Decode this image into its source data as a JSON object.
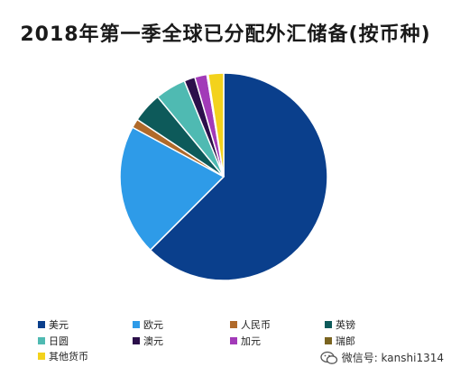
{
  "title": "2018年第一季全球已分配外汇储备(按币种)",
  "watermark": "微信号: kanshi1314",
  "chart_data": {
    "type": "pie",
    "title": "2018年第一季全球已分配外汇储备(按币种)",
    "legend_position": "bottom",
    "series": [
      {
        "name": "美元",
        "value": 62.5,
        "color": "#0a3f8c"
      },
      {
        "name": "欧元",
        "value": 20.4,
        "color": "#2e9be8"
      },
      {
        "name": "人民币",
        "value": 1.4,
        "color": "#b06a2a"
      },
      {
        "name": "英镑",
        "value": 4.7,
        "color": "#0d5a5a"
      },
      {
        "name": "日圆",
        "value": 4.8,
        "color": "#4fbab2"
      },
      {
        "name": "澳元",
        "value": 1.7,
        "color": "#2b0f4a"
      },
      {
        "name": "加元",
        "value": 1.9,
        "color": "#a23ab8"
      },
      {
        "name": "瑞郎",
        "value": 0.2,
        "color": "#7a6420"
      },
      {
        "name": "其他货币",
        "value": 2.4,
        "color": "#f3d21c"
      }
    ]
  }
}
